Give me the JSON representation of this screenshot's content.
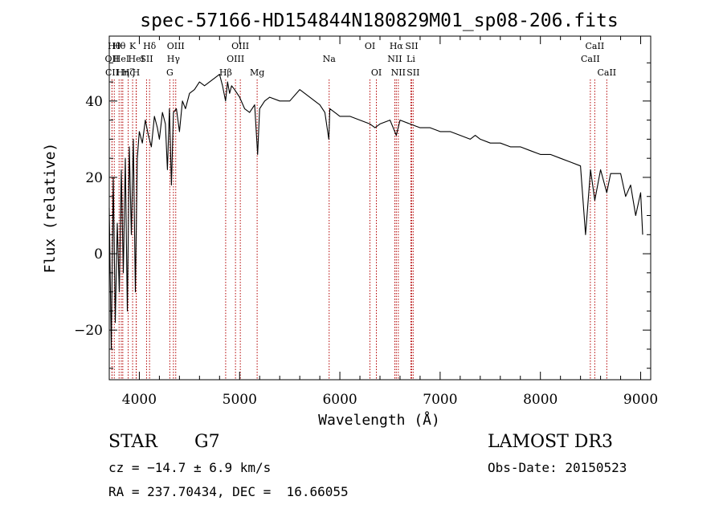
{
  "chart_data": {
    "type": "line",
    "title": "spec-57166-HD154844N180829M01_sp08-206.fits",
    "xlabel": "Wavelength (Å)",
    "ylabel": "Flux (relative)",
    "xlim": [
      3700,
      9100
    ],
    "ylim": [
      -33,
      57
    ],
    "xticks": [
      4000,
      5000,
      6000,
      7000,
      8000,
      9000
    ],
    "xtick_labels": [
      "4000",
      "5000",
      "6000",
      "7000",
      "8000",
      "9000"
    ],
    "yticks": [
      -20,
      0,
      20,
      40
    ],
    "ytick_labels": [
      "−20",
      "0",
      "20",
      "40"
    ],
    "grid": false,
    "legend": "none",
    "line_color": "#000000",
    "marker_color": "#b30000",
    "series": [
      {
        "x": [
          3700,
          3720,
          3740,
          3760,
          3780,
          3800,
          3820,
          3840,
          3860,
          3880,
          3900,
          3920,
          3940,
          3960,
          3980,
          4000,
          4030,
          4060,
          4090,
          4120,
          4150,
          4180,
          4200,
          4230,
          4260,
          4280,
          4300,
          4320,
          4340,
          4370,
          4400,
          4430,
          4460,
          4500,
          4550,
          4600,
          4650,
          4700,
          4750,
          4800,
          4830,
          4860,
          4880,
          4900,
          4920,
          4950,
          5000,
          5050,
          5100,
          5150,
          5180,
          5200,
          5250,
          5300,
          5400,
          5500,
          5600,
          5700,
          5800,
          5850,
          5890,
          5900,
          5950,
          6000,
          6100,
          6200,
          6300,
          6350,
          6400,
          6500,
          6563,
          6600,
          6700,
          6800,
          6900,
          7000,
          7100,
          7200,
          7300,
          7350,
          7400,
          7500,
          7600,
          7700,
          7800,
          7900,
          8000,
          8100,
          8200,
          8300,
          8400,
          8450,
          8500,
          8542,
          8600,
          8662,
          8700,
          8800,
          8850,
          8900,
          8950,
          9000,
          9020
        ],
        "y": [
          12,
          -25,
          20,
          -18,
          8,
          -10,
          22,
          -5,
          25,
          -15,
          28,
          5,
          30,
          -10,
          25,
          32,
          29,
          35,
          31,
          28,
          36,
          33,
          30,
          37,
          34,
          22,
          38,
          18,
          37,
          38,
          32,
          40,
          38,
          42,
          43,
          45,
          44,
          45,
          46,
          47,
          44,
          40,
          45,
          42,
          44,
          43,
          41,
          38,
          37,
          39,
          26,
          38,
          40,
          41,
          40,
          40,
          43,
          41,
          39,
          37,
          30,
          38,
          37,
          36,
          36,
          35,
          34,
          33,
          34,
          35,
          31,
          35,
          34,
          33,
          33,
          32,
          32,
          31,
          30,
          31,
          30,
          29,
          29,
          28,
          28,
          27,
          26,
          26,
          25,
          24,
          23,
          5,
          22,
          14,
          22,
          16,
          21,
          21,
          15,
          18,
          10,
          16,
          5
        ]
      }
    ],
    "line_markers": [
      {
        "x": 3750,
        "label": "Hθ",
        "row": 1
      },
      {
        "x": 3727,
        "label": "OII",
        "row": 2
      },
      {
        "x": 3728,
        "label": "CII",
        "row": 3
      },
      {
        "x": 3798,
        "label": "Hθ",
        "row": 1
      },
      {
        "x": 3820,
        "label": "HeI",
        "row": 2
      },
      {
        "x": 3835,
        "label": "Hη",
        "row": 3
      },
      {
        "x": 3889,
        "label": "Hζ",
        "row": 3
      },
      {
        "x": 3933,
        "label": "K",
        "row": 1
      },
      {
        "x": 3968,
        "label": "H",
        "row": 3
      },
      {
        "x": 3970,
        "label": "HeI",
        "row": 2
      },
      {
        "x": 4072,
        "label": "SII",
        "row": 2
      },
      {
        "x": 4102,
        "label": "Hδ",
        "row": 1
      },
      {
        "x": 4304,
        "label": "G",
        "row": 3
      },
      {
        "x": 4340,
        "label": "Hγ",
        "row": 2
      },
      {
        "x": 4363,
        "label": "OIII",
        "row": 1
      },
      {
        "x": 4861,
        "label": "Hβ",
        "row": 3
      },
      {
        "x": 4959,
        "label": "OIII",
        "row": 2
      },
      {
        "x": 5007,
        "label": "OIII",
        "row": 1
      },
      {
        "x": 5175,
        "label": "Mg",
        "row": 3
      },
      {
        "x": 5893,
        "label": "Na",
        "row": 2
      },
      {
        "x": 6300,
        "label": "OI",
        "row": 1
      },
      {
        "x": 6364,
        "label": "OI",
        "row": 3
      },
      {
        "x": 6548,
        "label": "NII",
        "row": 2
      },
      {
        "x": 6563,
        "label": "Hα",
        "row": 1
      },
      {
        "x": 6583,
        "label": "NII",
        "row": 3
      },
      {
        "x": 6708,
        "label": "Li",
        "row": 2
      },
      {
        "x": 6716,
        "label": "SII",
        "row": 1
      },
      {
        "x": 6731,
        "label": "SII",
        "row": 3
      },
      {
        "x": 8498,
        "label": "CaII",
        "row": 2
      },
      {
        "x": 8542,
        "label": "CaII",
        "row": 1
      },
      {
        "x": 8662,
        "label": "CaII",
        "row": 3
      }
    ]
  },
  "info": {
    "object_class": "STAR",
    "subclass": "G7",
    "survey": "LAMOST DR3",
    "cz": "cz = −14.7 ± 6.9 km/s",
    "obs_date": "Obs-Date: 20150523",
    "coords": "RA = 237.70434, DEC =  16.66055"
  }
}
